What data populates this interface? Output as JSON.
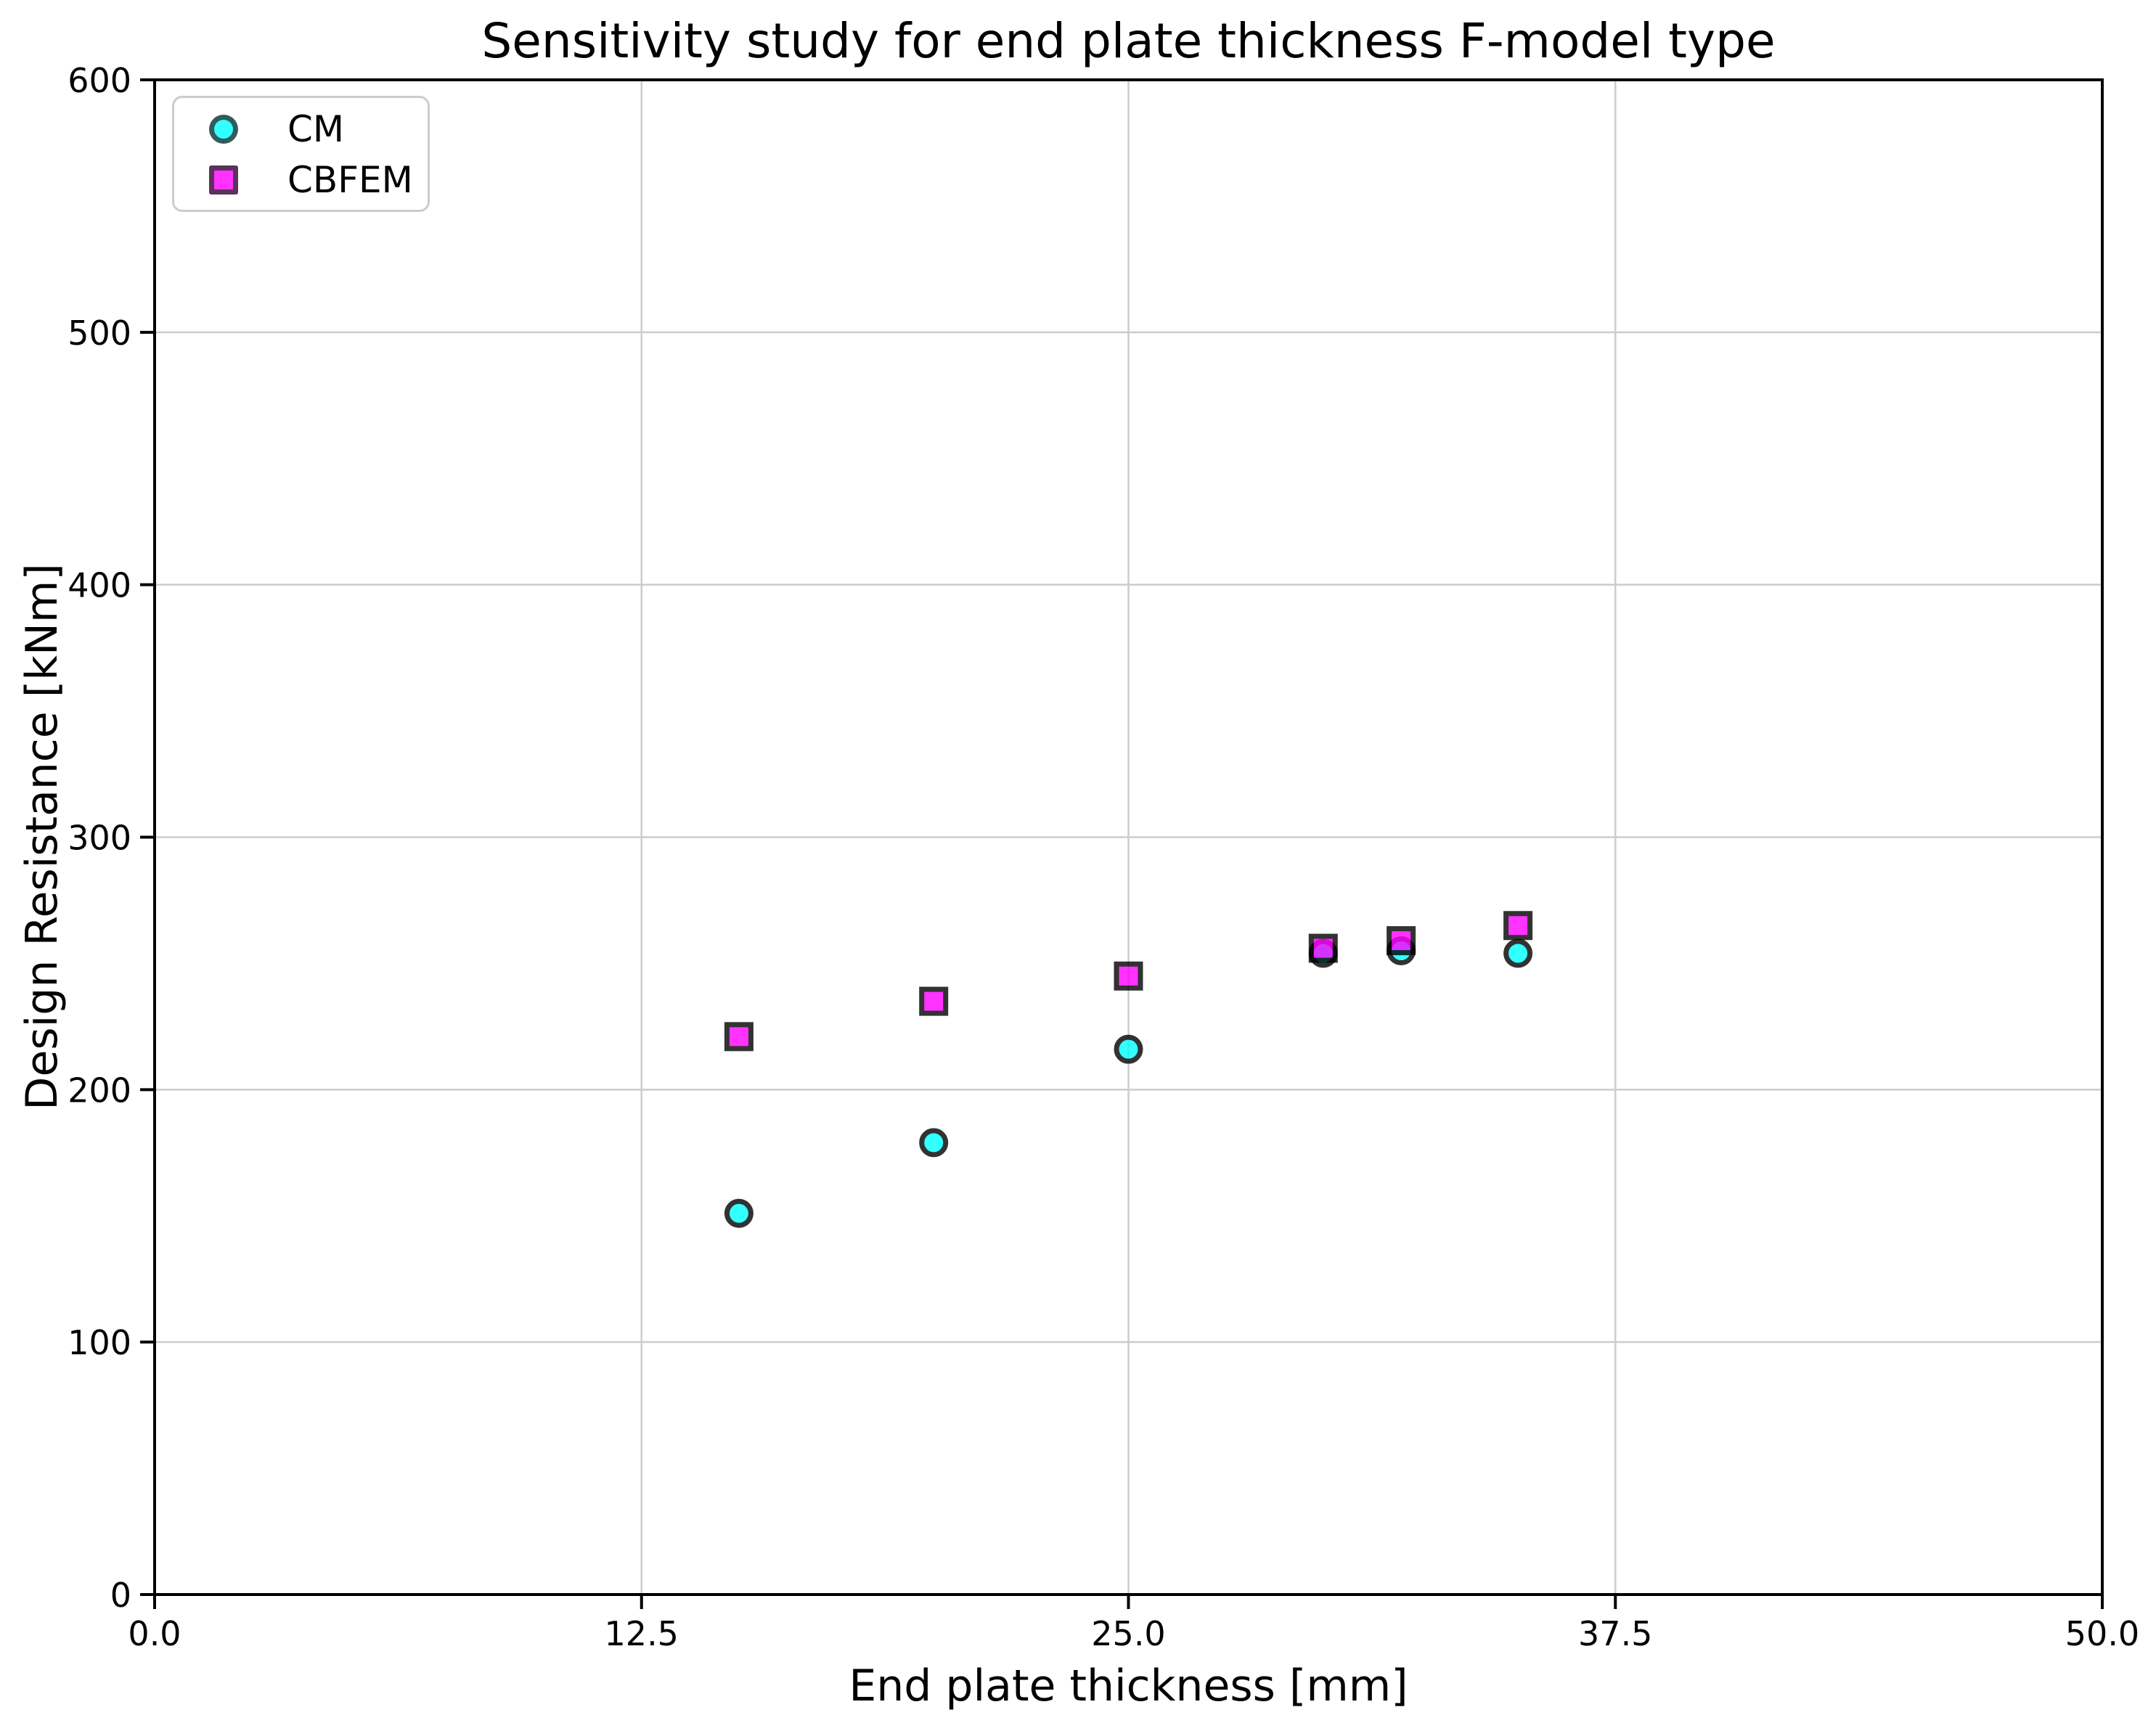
{
  "chart_data": {
    "type": "scatter",
    "title": "Sensitivity study for end plate thickness F-model type",
    "xlabel": "End plate thickness [mm]",
    "ylabel": "Design Resistance [kNm]",
    "xlim": [
      0,
      50
    ],
    "ylim": [
      0,
      600
    ],
    "xticks": [
      0,
      12.5,
      25,
      37.5,
      50
    ],
    "xtick_labels": [
      "0.0",
      "12.5",
      "25.0",
      "37.5",
      "50.0"
    ],
    "yticks": [
      0,
      100,
      200,
      300,
      400,
      500,
      600
    ],
    "ytick_labels": [
      "0",
      "100",
      "200",
      "300",
      "400",
      "500",
      "600"
    ],
    "grid": true,
    "grid_color": "#cccccc",
    "spine_color": "#000000",
    "background": "#ffffff",
    "legend_position": "upper left",
    "marker_alpha": 0.8,
    "series": [
      {
        "name": "CM",
        "marker": "circle",
        "color": "#00ffff",
        "edge_color": "#000000",
        "x": [
          15,
          20,
          25,
          30,
          32,
          35
        ],
        "y": [
          151,
          179,
          216,
          254,
          255,
          254
        ]
      },
      {
        "name": "CBFEM",
        "marker": "square",
        "color": "#ff00ff",
        "edge_color": "#000000",
        "x": [
          15,
          20,
          25,
          30,
          32,
          35
        ],
        "y": [
          221,
          235,
          245,
          256,
          259,
          265
        ]
      }
    ]
  }
}
